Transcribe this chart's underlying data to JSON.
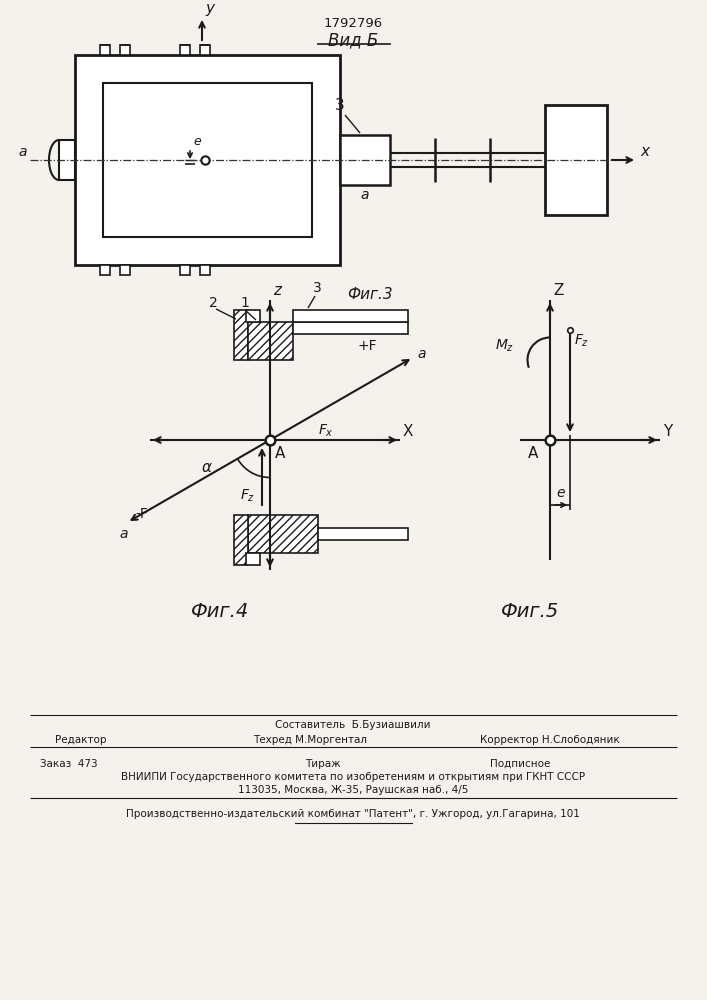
{
  "title_patent": "1792796",
  "title_view": "Вид Б",
  "fig3_label": "Фиг.3",
  "fig4_label": "Фиг.4",
  "fig5_label": "Фиг.5",
  "bg_color": "#f5f2ee",
  "line_color": "#1a1a1a",
  "footer_line1_left": "Редактор",
  "footer_line1_center1": "Составитель  Б.Бузиашвили",
  "footer_line1_center2": "Техред М.Моргентал",
  "footer_line1_right": "Корректор Н.Слободяник",
  "footer_line2_left": "Заказ  473",
  "footer_line2_center": "Тираж",
  "footer_line2_right": "Подписное",
  "footer_line3": "ВНИИПИ Государственного комитета по изобретениям и открытиям при ГКНТ СССР",
  "footer_line4": "113035, Москва, Ж-35, Раушская наб., 4/5",
  "footer_line5": "Производственно-издательский комбинат \"Патент\", г. Ужгород, ул.Гагарина, 101"
}
